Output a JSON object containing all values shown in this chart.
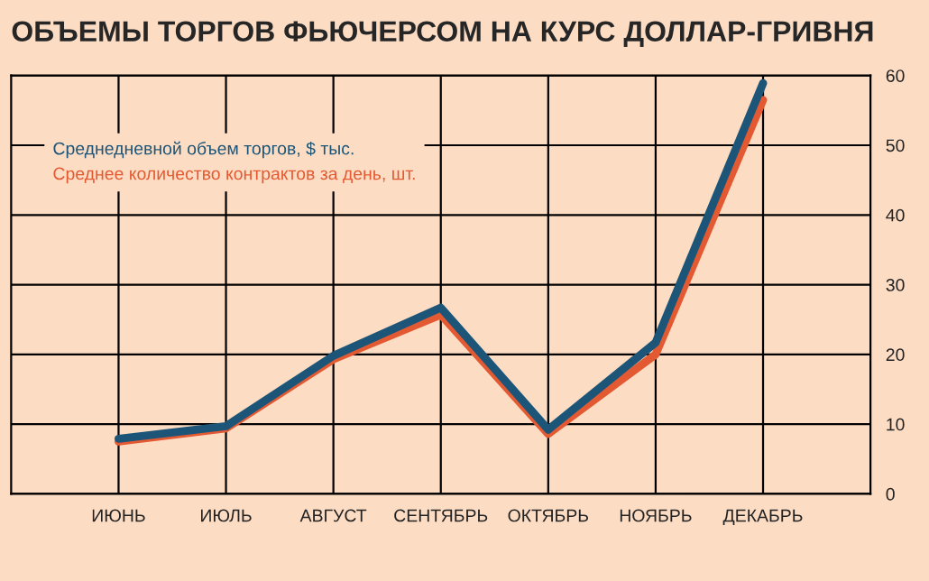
{
  "chart_data": {
    "type": "line",
    "title": "ОБЪЕМЫ ТОРГОВ ФЬЮЧЕРСОМ НА КУРС ДОЛЛАР-ГРИВНЯ",
    "categories": [
      "ИЮНЬ",
      "ИЮЛЬ",
      "АВГУСТ",
      "СЕНТЯБРЬ",
      "ОКТЯБРЬ",
      "НОЯБРЬ",
      "ДЕКАБРЬ"
    ],
    "series": [
      {
        "name": "Среднее количество контрактов за день, шт.",
        "color": "#e35a32",
        "values": [
          7.5,
          9.4,
          19.3,
          25.7,
          8.6,
          20,
          56.5
        ]
      },
      {
        "name": "Среднедневной объем торгов, $ тыс.",
        "color": "#1c5577",
        "values": [
          7.9,
          9.7,
          19.8,
          26.7,
          9.2,
          21.7,
          58.9
        ]
      }
    ],
    "ylim": [
      0,
      60
    ],
    "yticks": [
      0,
      10,
      20,
      30,
      40,
      50,
      60
    ],
    "grid": true,
    "legend": "top left",
    "marker": "none",
    "line_style": "solid"
  }
}
